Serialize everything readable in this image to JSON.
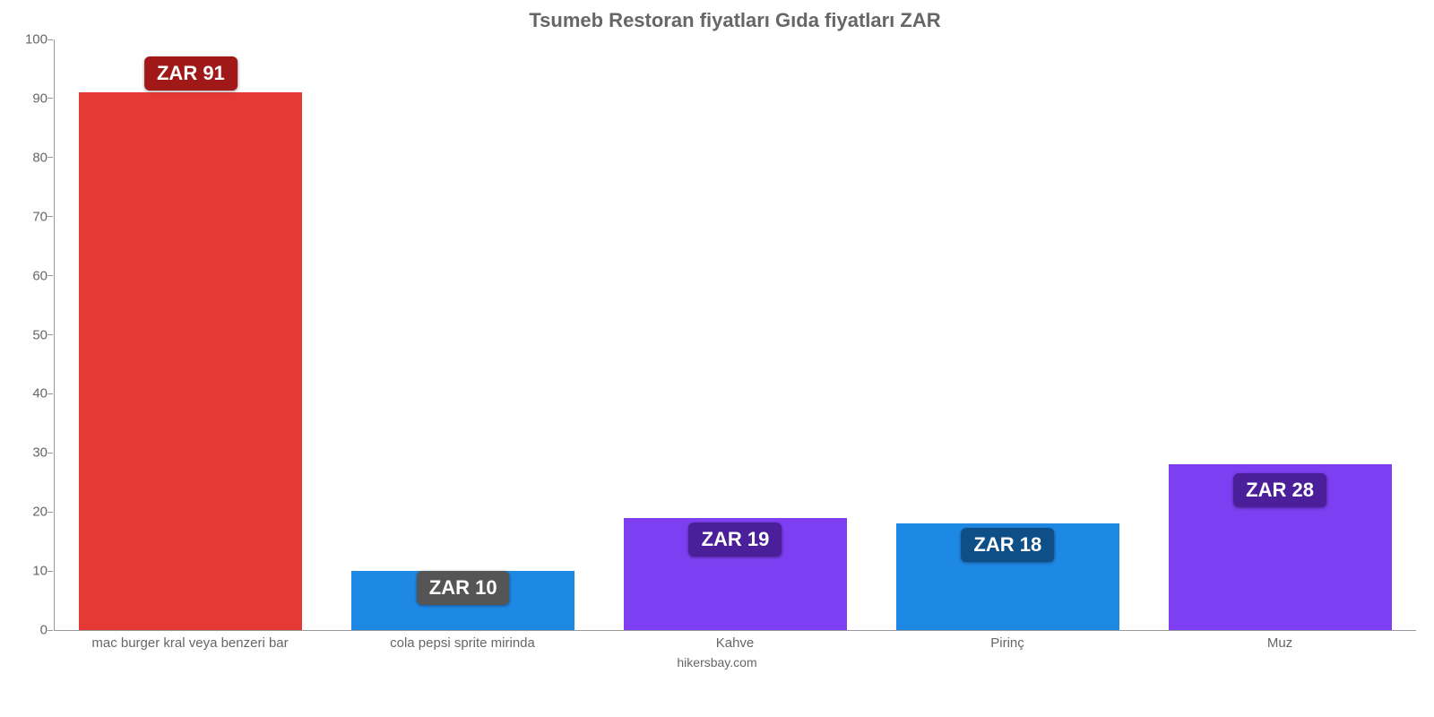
{
  "chart": {
    "type": "bar",
    "title": "Tsumeb Restoran fiyatları Gıda fiyatları ZAR",
    "title_fontsize": 22,
    "title_color": "#666666",
    "background_color": "#ffffff",
    "axis_color": "#999999",
    "tick_label_color": "#666666",
    "tick_label_fontsize": 15,
    "xlabel_fontsize": 15,
    "ylim": [
      0,
      100
    ],
    "ytick_step": 10,
    "yticks": [
      0,
      10,
      20,
      30,
      40,
      50,
      60,
      70,
      80,
      90,
      100
    ],
    "bar_width": 0.82,
    "categories": [
      "mac burger kral veya benzeri bar",
      "cola pepsi sprite mirinda",
      "Kahve",
      "Pirinç",
      "Muz"
    ],
    "values": [
      91,
      10,
      19,
      18,
      28
    ],
    "value_prefix": "ZAR ",
    "value_labels": [
      "ZAR 91",
      "ZAR 10",
      "ZAR 19",
      "ZAR 18",
      "ZAR 28"
    ],
    "bar_colors": [
      "#e53935",
      "#1e88e5",
      "#7e3ff2",
      "#1e88e5",
      "#7e3ff2"
    ],
    "badge_colors": [
      "#a01818",
      "#555555",
      "#4a1f99",
      "#0f4f87",
      "#4a1f99"
    ],
    "badge_text_color": "#ffffff",
    "badge_fontsize": 22,
    "badge_offsets": [
      -40,
      0,
      5,
      5,
      10
    ],
    "footer": "hikersbay.com",
    "footer_color": "#666666",
    "footer_fontsize": 14
  }
}
